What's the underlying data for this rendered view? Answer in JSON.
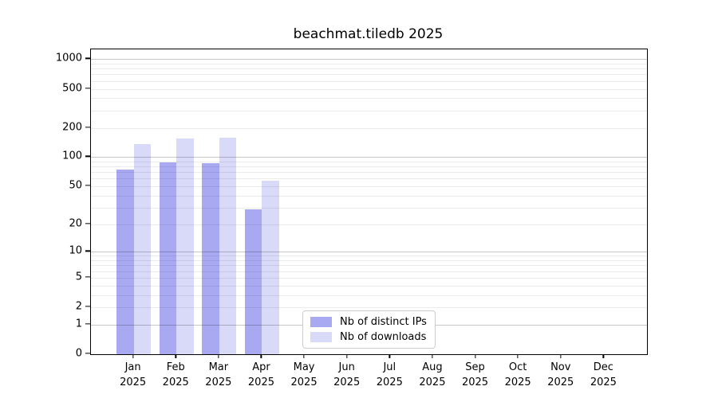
{
  "chart_data": {
    "type": "bar",
    "title": "beachmat.tiledb 2025",
    "categories": [
      "Jan",
      "Feb",
      "Mar",
      "Apr",
      "May",
      "Jun",
      "Jul",
      "Aug",
      "Sep",
      "Oct",
      "Nov",
      "Dec"
    ],
    "category_year": "2025",
    "series": [
      {
        "name": "Nb of distinct IPs",
        "color": "#a9a9f2",
        "values": [
          74,
          88,
          86,
          29,
          null,
          null,
          null,
          null,
          null,
          null,
          null,
          null
        ]
      },
      {
        "name": "Nb of downloads",
        "color": "#d9d9f8",
        "values": [
          136,
          156,
          159,
          57,
          null,
          null,
          null,
          null,
          null,
          null,
          null,
          null
        ]
      }
    ],
    "xlabel": "",
    "ylabel": "",
    "y_axis": {
      "scale": "log1p",
      "tick_values": [
        0,
        1,
        2,
        5,
        10,
        20,
        50,
        100,
        200,
        500,
        1000
      ],
      "major_gridlines": [
        1,
        10,
        100,
        1000
      ],
      "minor_gridlines_rule": "2-9 per decade",
      "max": 1260
    },
    "grid": true,
    "legend_position": "bottom-center"
  }
}
